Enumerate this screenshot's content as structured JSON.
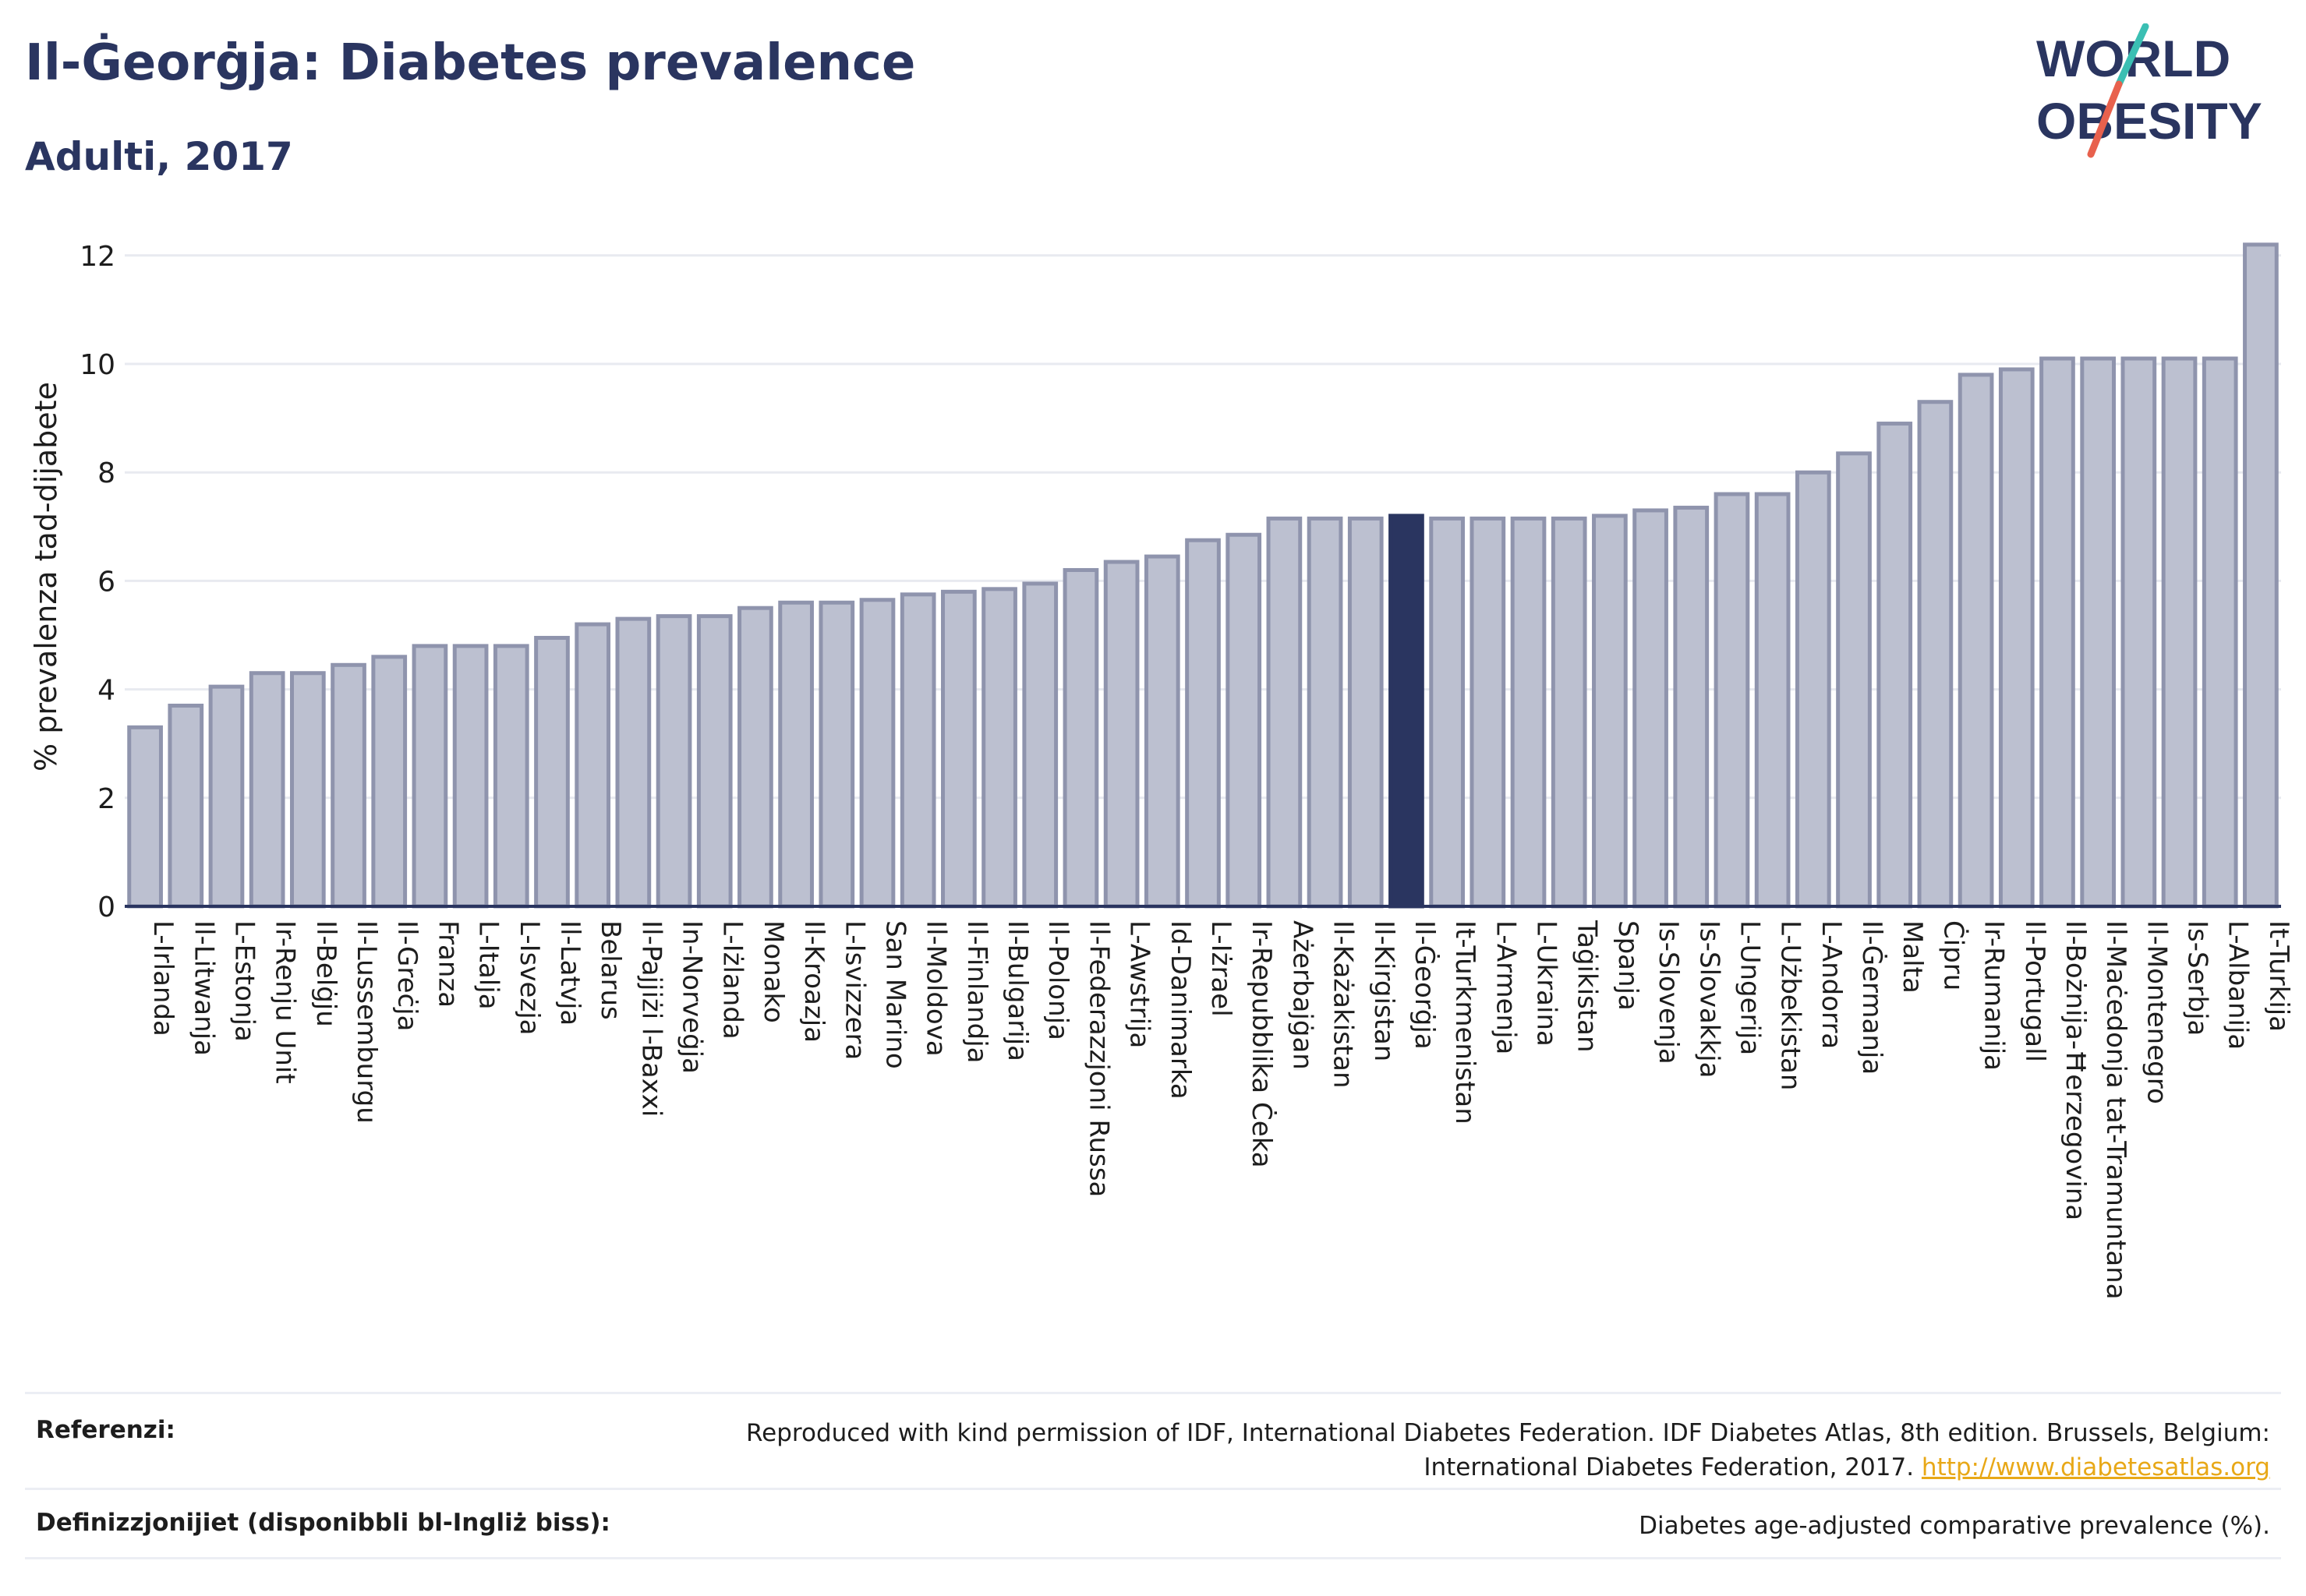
{
  "header": {
    "title": "Il-Ġeorġja: Diabetes prevalence",
    "subtitle": "Adulti, 2017"
  },
  "logo": {
    "line1": "WORLD",
    "line2": "OBESITY",
    "colors": {
      "text": "#2a3560",
      "slash_top": "#3bbfb3",
      "slash_bottom": "#e8614d"
    }
  },
  "colors": {
    "bar_fill": "#bcc0d0",
    "bar_stroke": "#8f94ad",
    "highlight_fill": "#2a3560",
    "grid": "#e8eaf0",
    "axis": "#2a3560"
  },
  "chart_data": {
    "type": "bar",
    "ylabel": "% prevalenza tad-dijabete",
    "ylim": [
      0,
      12.5
    ],
    "yticks": [
      0,
      2,
      4,
      6,
      8,
      10,
      12
    ],
    "grid": true,
    "highlight": "Il-Ġeorġja",
    "categories": [
      "L-Irlanda",
      "Il-Litwanja",
      "L-Estonja",
      "Ir-Renju Unit",
      "Il-Belġju",
      "Il-Lussemburgu",
      "Il-Greċja",
      "Franza",
      "L-Italja",
      "L-Isvezja",
      "Il-Latvja",
      "Belarus",
      "Il-Pajjiżi l-Baxxi",
      "In-Norveġja",
      "L-Iżlanda",
      "Monako",
      "Il-Kroazja",
      "L-Isvizzera",
      "San Marino",
      "Il-Moldova",
      "Il-Finlandja",
      "Il-Bulgarija",
      "Il-Polonja",
      "Il-Federazzjoni Russa",
      "L-Awstrija",
      "Id-Danimarka",
      "L-Iżrael",
      "Ir-Repubblika Ċeka",
      "Ażerbajġan",
      "Il-Każakistan",
      "Il-Kirgistan",
      "Il-Ġeorġja",
      "It-Turkmenistan",
      "L-Armenja",
      "L-Ukraina",
      "Taġikistan",
      "Spanja",
      "Is-Slovenja",
      "Is-Slovakkja",
      "L-Ungerija",
      "L-Użbekistan",
      "L-Andorra",
      "Il-Ġermanja",
      "Malta",
      "Ċipru",
      "Ir-Rumanija",
      "Il-Portugall",
      "Il-Bożnija-Ħerzegovina",
      "Il-Maċedonja tat-Tramuntana",
      "Il-Montenegro",
      "Is-Serbja",
      "L-Albanija",
      "It-Turkija"
    ],
    "values": [
      3.3,
      3.7,
      4.05,
      4.3,
      4.3,
      4.45,
      4.6,
      4.8,
      4.8,
      4.8,
      4.95,
      5.2,
      5.3,
      5.35,
      5.35,
      5.5,
      5.6,
      5.6,
      5.65,
      5.75,
      5.8,
      5.85,
      5.95,
      6.2,
      6.35,
      6.45,
      6.75,
      6.85,
      7.15,
      7.15,
      7.15,
      7.2,
      7.15,
      7.15,
      7.15,
      7.15,
      7.2,
      7.3,
      7.35,
      7.6,
      7.6,
      8.0,
      8.35,
      8.9,
      9.3,
      9.8,
      9.9,
      10.1,
      10.1,
      10.1,
      10.1,
      10.1,
      12.2
    ]
  },
  "footer": {
    "references_label": "Referenzi:",
    "references_text": "Reproduced with kind permission of IDF, International Diabetes Federation. IDF Diabetes Atlas, 8th edition. Brussels, Belgium:",
    "references_text2": "International Diabetes Federation, 2017.",
    "references_link": "http://www.diabetesatlas.org",
    "definitions_label": "Definizzjonijiet (disponibbli bl-Ingliż biss):",
    "definitions_text": "Diabetes age-adjusted comparative prevalence (%)."
  }
}
